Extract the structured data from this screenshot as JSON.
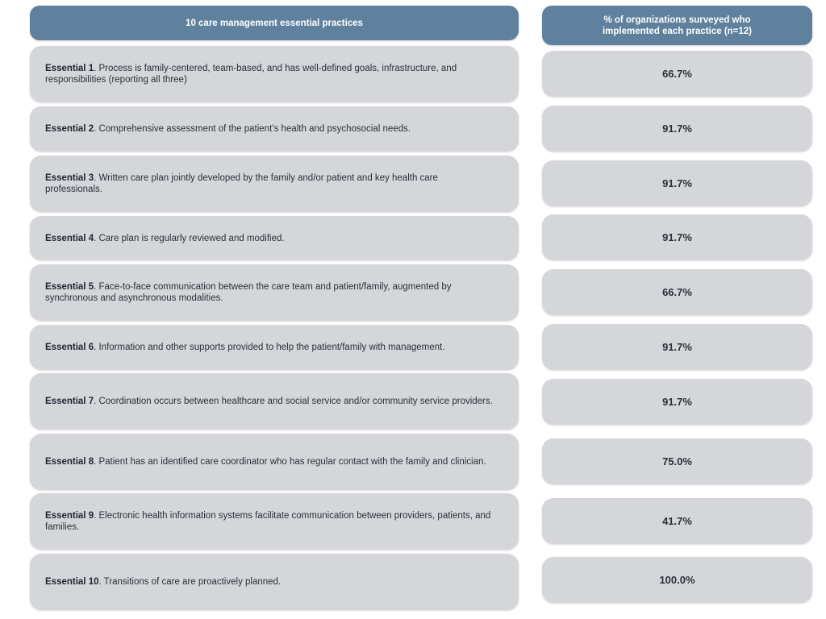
{
  "header": {
    "left": "10 care management essential practices",
    "right_line1": "% of organizations surveyed who",
    "right_line2": "implemented each practice (n=12)"
  },
  "rows": [
    {
      "label": "Essential 1",
      "text": ". Process is family-centered, team-based, and has well-defined goals, infrastructure, and responsibilities (reporting all three)",
      "percent": "66.7%"
    },
    {
      "label": "Essential 2",
      "text": ". Comprehensive assessment of the patient’s health and psychosocial needs.",
      "percent": "91.7%"
    },
    {
      "label": "Essential 3",
      "text": ". Written care plan jointly developed by the family and/or patient and key health care professionals.",
      "percent": "91.7%"
    },
    {
      "label": "Essential 4",
      "text": ". Care plan is regularly reviewed and modified.",
      "percent": "91.7%"
    },
    {
      "label": "Essential 5",
      "text": ". Face-to-face communication between the care team and patient/family, augmented by synchronous and asynchronous modalities.",
      "percent": "66.7%"
    },
    {
      "label": "Essential 6",
      "text": ". Information and other supports provided to help the patient/family with management.",
      "percent": "91.7%"
    },
    {
      "label": "Essential 7",
      "text": ". Coordination occurs between healthcare and social service and/or community service providers.",
      "percent": "91.7%"
    },
    {
      "label": "Essential 8",
      "text": ". Patient has an identified care coordinator who has regular contact with the family and clinician.",
      "percent": "75.0%"
    },
    {
      "label": "Essential 9",
      "text": ". Electronic health information systems facilitate communication between providers, patients, and families.",
      "percent": "41.7%"
    },
    {
      "label": "Essential 10",
      "text": ". Transitions of care are proactively planned.",
      "percent": "100.0%"
    }
  ],
  "colors": {
    "header_bg": "#5f819e",
    "cell_bg": "#d5d6d9",
    "text": "#2b2f3a"
  }
}
